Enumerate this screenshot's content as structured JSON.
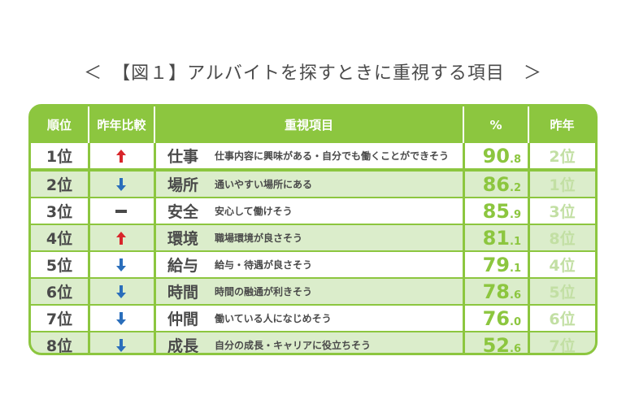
{
  "title": "＜　【図１】アルバイトを探すときに重視する項目　＞",
  "headers": {
    "rank": "順位",
    "change": "昨年比較",
    "item": "重視項目",
    "percent": "%",
    "last_year": "昨年"
  },
  "colors": {
    "accent": "#8cc63f",
    "up": "#d8262b",
    "down": "#2a6ebb",
    "row_alt": "#dbedcb"
  },
  "rows": [
    {
      "rank": "1位",
      "change": "up",
      "item": "仕事",
      "desc": "仕事内容に興味がある・自分でも働くことができそう",
      "pct_int": "90",
      "pct_dec": ".8",
      "last_year": "2位"
    },
    {
      "rank": "2位",
      "change": "down",
      "item": "場所",
      "desc": "通いやすい場所にある",
      "pct_int": "86",
      "pct_dec": ".2",
      "last_year": "1位"
    },
    {
      "rank": "3位",
      "change": "same",
      "item": "安全",
      "desc": "安心して働けそう",
      "pct_int": "85",
      "pct_dec": ".9",
      "last_year": "3位"
    },
    {
      "rank": "4位",
      "change": "up",
      "item": "環境",
      "desc": "職場環境が良さそう",
      "pct_int": "81",
      "pct_dec": ".1",
      "last_year": "8位"
    },
    {
      "rank": "5位",
      "change": "down",
      "item": "給与",
      "desc": "給与・待遇が良さそう",
      "pct_int": "79",
      "pct_dec": ".1",
      "last_year": "4位"
    },
    {
      "rank": "6位",
      "change": "down",
      "item": "時間",
      "desc": "時間の融通が利きそう",
      "pct_int": "78",
      "pct_dec": ".6",
      "last_year": "5位"
    },
    {
      "rank": "7位",
      "change": "down",
      "item": "仲間",
      "desc": "働いている人になじめそう",
      "pct_int": "76",
      "pct_dec": ".0",
      "last_year": "6位"
    },
    {
      "rank": "8位",
      "change": "down",
      "item": "成長",
      "desc": "自分の成長・キャリアに役立ちそう",
      "pct_int": "52",
      "pct_dec": ".6",
      "last_year": "7位"
    }
  ]
}
